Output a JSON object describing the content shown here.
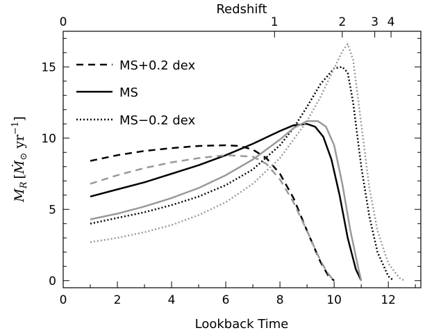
{
  "chart_data": {
    "type": "line",
    "title": "",
    "xlabel": "Lookback Time",
    "ylabel": "M_R [Ṁ_⊙ yr⁻¹]",
    "ylabel_parts": {
      "m": "M",
      "sub": "R",
      "open": "[",
      "mdot": "Ṁ",
      "sun": "⊙",
      "unit": " yr",
      "exp": "−1",
      "close": "]"
    },
    "top_axis_label": "Redshift",
    "xlim": [
      0,
      13.2
    ],
    "ylim": [
      -0.5,
      17.5
    ],
    "x_ticks": [
      0,
      2,
      4,
      6,
      8,
      10,
      12
    ],
    "x_tick_labels": [
      "0",
      "2",
      "4",
      "6",
      "8",
      "10",
      "12"
    ],
    "y_ticks": [
      0,
      5,
      10,
      15
    ],
    "y_tick_labels": [
      "0",
      "5",
      "10",
      "15"
    ],
    "top_ticks": [
      {
        "label": "0",
        "x": 0.0
      },
      {
        "label": "1",
        "x": 7.8
      },
      {
        "label": "2",
        "x": 10.3
      },
      {
        "label": "3",
        "x": 11.5
      },
      {
        "label": "4",
        "x": 12.1
      }
    ],
    "grid": false,
    "legend_position": "top-left",
    "legend": [
      {
        "label": "MS+0.2 dex",
        "style": "dashed"
      },
      {
        "label": "MS",
        "style": "solid"
      },
      {
        "label": "MS−0.2 dex",
        "style": "dotted"
      }
    ],
    "colors": {
      "black": "#000000",
      "gray": "#999999"
    },
    "series": [
      {
        "name": "MS+0.2 dex",
        "color": "black",
        "style": "dashed",
        "x": [
          1.0,
          2.0,
          3.0,
          4.0,
          5.0,
          6.0,
          6.5,
          7.0,
          7.5,
          8.0,
          8.5,
          9.0,
          9.5,
          9.8,
          10.0
        ],
        "y": [
          8.4,
          8.8,
          9.1,
          9.3,
          9.45,
          9.5,
          9.45,
          9.2,
          8.6,
          7.5,
          5.8,
          3.5,
          1.3,
          0.3,
          0.0
        ]
      },
      {
        "name": "MS",
        "color": "black",
        "style": "solid",
        "x": [
          1.0,
          2.0,
          3.0,
          4.0,
          5.0,
          6.0,
          7.0,
          8.0,
          8.5,
          9.0,
          9.3,
          9.6,
          9.9,
          10.2,
          10.5,
          10.8,
          11.0
        ],
        "y": [
          5.9,
          6.4,
          6.9,
          7.5,
          8.1,
          8.8,
          9.6,
          10.5,
          10.9,
          11.0,
          10.8,
          10.1,
          8.5,
          6.0,
          3.0,
          0.8,
          0.0
        ]
      },
      {
        "name": "MS−0.2 dex",
        "color": "black",
        "style": "dotted",
        "x": [
          1.0,
          2.0,
          3.0,
          4.0,
          5.0,
          6.0,
          7.0,
          8.0,
          8.5,
          9.0,
          9.5,
          10.0,
          10.3,
          10.5,
          10.7,
          11.0,
          11.3,
          11.6,
          12.0,
          12.2
        ],
        "y": [
          4.0,
          4.4,
          4.8,
          5.3,
          5.9,
          6.7,
          7.8,
          9.5,
          10.7,
          12.2,
          13.8,
          14.9,
          15.0,
          14.6,
          12.5,
          8.0,
          4.5,
          2.0,
          0.3,
          0.0
        ]
      },
      {
        "name": "MS+0.2 dex (gray)",
        "color": "gray",
        "style": "dashed",
        "x": [
          1.0,
          2.0,
          3.0,
          4.0,
          5.0,
          6.0,
          7.0,
          7.5,
          8.0,
          8.5,
          9.0,
          9.4,
          9.7,
          9.9,
          10.0
        ],
        "y": [
          6.8,
          7.4,
          7.9,
          8.3,
          8.6,
          8.8,
          8.7,
          8.2,
          7.1,
          5.5,
          3.5,
          1.8,
          0.7,
          0.2,
          0.0
        ]
      },
      {
        "name": "MS (gray)",
        "color": "gray",
        "style": "solid",
        "x": [
          1.0,
          2.0,
          3.0,
          4.0,
          5.0,
          6.0,
          7.0,
          8.0,
          8.5,
          9.0,
          9.4,
          9.7,
          10.0,
          10.3,
          10.6,
          10.9,
          11.0
        ],
        "y": [
          4.3,
          4.7,
          5.2,
          5.8,
          6.5,
          7.4,
          8.5,
          9.9,
          10.7,
          11.2,
          11.2,
          10.8,
          9.5,
          6.8,
          3.5,
          0.8,
          0.0
        ]
      },
      {
        "name": "MS−0.2 dex (gray)",
        "color": "gray",
        "style": "dotted",
        "x": [
          1.0,
          2.0,
          3.0,
          4.0,
          5.0,
          6.0,
          7.0,
          8.0,
          9.0,
          9.5,
          10.0,
          10.3,
          10.5,
          10.7,
          11.0,
          11.3,
          11.6,
          12.0,
          12.4,
          12.6
        ],
        "y": [
          2.7,
          3.0,
          3.4,
          3.9,
          4.6,
          5.5,
          6.8,
          8.6,
          11.2,
          12.9,
          14.9,
          16.1,
          16.6,
          15.5,
          11.0,
          6.5,
          3.5,
          1.2,
          0.2,
          0.0
        ]
      }
    ]
  }
}
